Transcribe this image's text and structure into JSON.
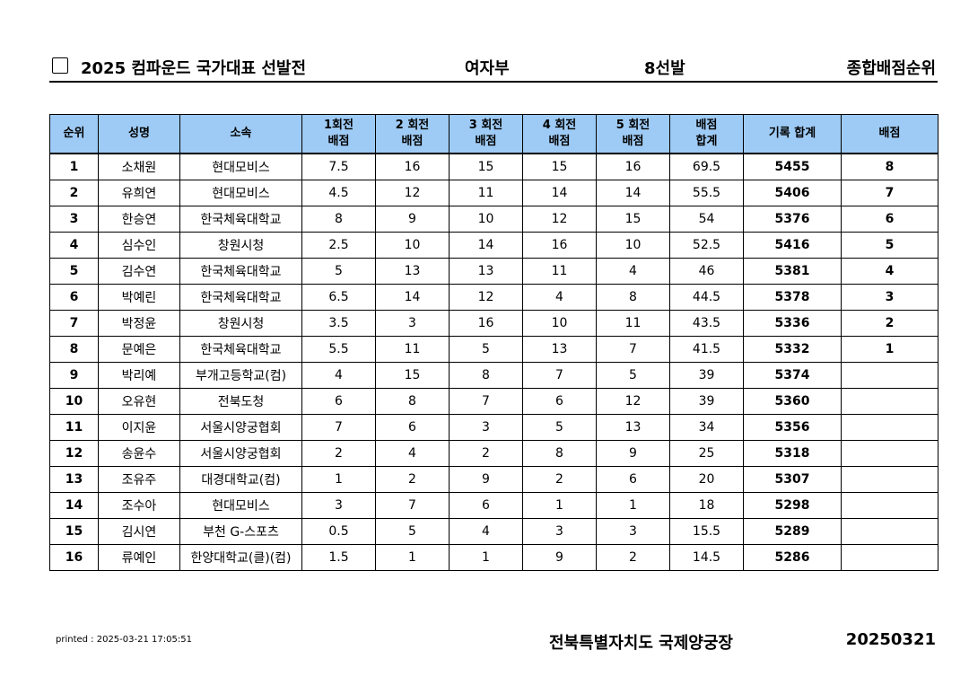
{
  "header": {
    "title": "2025 컴파운드 국가대표 선발전",
    "division": "여자부",
    "selection": "8선발",
    "ranking": "종합배점순위"
  },
  "table": {
    "columns": [
      [
        "순위"
      ],
      [
        "성명"
      ],
      [
        "소속"
      ],
      [
        "1회전",
        "배점"
      ],
      [
        "2 회전",
        "배점"
      ],
      [
        "3 회전",
        "배점"
      ],
      [
        "4 회전",
        "배점"
      ],
      [
        "5 회전",
        "배점"
      ],
      [
        "배점",
        "합계"
      ],
      [
        "기록 합계"
      ],
      [
        "배점"
      ]
    ],
    "rows": [
      [
        1,
        "소채원",
        "현대모비스",
        7.5,
        16,
        15,
        15,
        16,
        69.5,
        5455,
        8
      ],
      [
        2,
        "유희연",
        "현대모비스",
        4.5,
        12,
        11,
        14,
        14,
        55.5,
        5406,
        7
      ],
      [
        3,
        "한승연",
        "한국체육대학교",
        8,
        9,
        10,
        12,
        15,
        54,
        5376,
        6
      ],
      [
        4,
        "심수인",
        "창원시청",
        2.5,
        10,
        14,
        16,
        10,
        52.5,
        5416,
        5
      ],
      [
        5,
        "김수연",
        "한국체육대학교",
        5,
        13,
        13,
        11,
        4,
        46,
        5381,
        4
      ],
      [
        6,
        "박예린",
        "한국체육대학교",
        6.5,
        14,
        12,
        4,
        8,
        44.5,
        5378,
        3
      ],
      [
        7,
        "박정윤",
        "창원시청",
        3.5,
        3,
        16,
        10,
        11,
        43.5,
        5336,
        2
      ],
      [
        8,
        "문예은",
        "한국체육대학교",
        5.5,
        11,
        5,
        13,
        7,
        41.5,
        5332,
        1
      ],
      [
        9,
        "박리예",
        "부개고등학교(컴)",
        4,
        15,
        8,
        7,
        5,
        39,
        5374
      ],
      [
        10,
        "오유현",
        "전북도청",
        6,
        8,
        7,
        6,
        12,
        39,
        5360
      ],
      [
        11,
        "이지윤",
        "서울시양궁협회",
        7,
        6,
        3,
        5,
        13,
        34,
        5356
      ],
      [
        12,
        "송윤수",
        "서울시양궁협회",
        2,
        4,
        2,
        8,
        9,
        25,
        5318
      ],
      [
        13,
        "조유주",
        "대경대학교(컴)",
        1,
        2,
        9,
        2,
        6,
        20,
        5307
      ],
      [
        14,
        "조수아",
        "현대모비스",
        3,
        7,
        6,
        1,
        1,
        18,
        5298
      ],
      [
        15,
        "김시연",
        "부천 G-스포츠",
        0.5,
        5,
        4,
        3,
        3,
        15.5,
        5289
      ],
      [
        16,
        "류예인",
        "한양대학교(클)(컴)",
        1.5,
        1,
        1,
        9,
        2,
        14.5,
        5286
      ]
    ]
  },
  "footer": {
    "printed": "printed : 2025-03-21 17:05:51",
    "venue": "전북특별자치도 국제양궁장",
    "date": "20250321"
  }
}
